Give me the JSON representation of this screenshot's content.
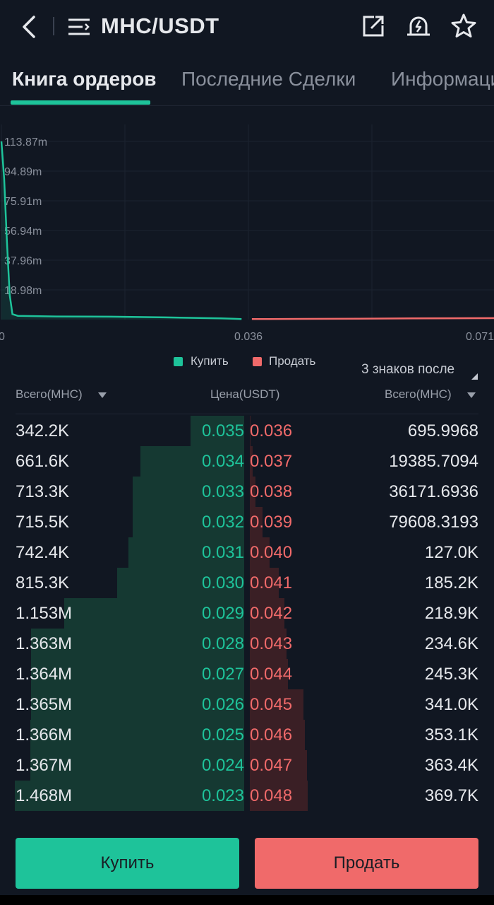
{
  "header": {
    "pair": "MHC/USDT",
    "icons": [
      "back-icon",
      "menu-icon",
      "share-icon",
      "alert-icon",
      "star-icon"
    ]
  },
  "tabs": [
    {
      "label": "Книга ордеров",
      "active": true
    },
    {
      "label": "Последние Сделки",
      "active": false
    },
    {
      "label": "Информация",
      "active": false
    }
  ],
  "chart_data": {
    "type": "area",
    "y_ticks": [
      "113.87m",
      "94.89m",
      "75.91m",
      "56.94m",
      "37.96m",
      "18.98m"
    ],
    "x_ticks": [
      "0",
      "0.036",
      "0.071"
    ],
    "ylim": [
      0,
      122000000
    ],
    "xlim": [
      0,
      0.072
    ],
    "grid": true,
    "series": [
      {
        "name": "Купить",
        "color": "#1ec39a",
        "x": [
          0,
          0.0004,
          0.0008,
          0.0012,
          0.0016,
          0.0024,
          0.008,
          0.016,
          0.024,
          0.032,
          0.034,
          0.035
        ],
        "y": [
          113870000,
          90000000,
          50000000,
          16000000,
          3500000,
          2400000,
          2000000,
          1850000,
          1400000,
          800000,
          500000,
          342200
        ]
      },
      {
        "name": "Продать",
        "color": "#f06a6a",
        "x": [
          0.0365,
          0.044,
          0.052,
          0.06,
          0.068,
          0.072
        ],
        "y": [
          300000,
          450000,
          600000,
          750000,
          900000,
          950000
        ]
      }
    ],
    "legend_position": "bottom-center"
  },
  "legend": {
    "buy": "Купить",
    "sell": "Продать",
    "buy_color": "#1ec39a",
    "sell_color": "#f06a6a"
  },
  "precision": "3 знаков после",
  "columns": {
    "bid_total": "Всего(MHC)",
    "price": "Цена(USDT)",
    "ask_total": "Всего(MHC)"
  },
  "orderbook": [
    {
      "bid_total": "342.2K",
      "bid_price": "0.035",
      "ask_price": "0.036",
      "ask_total": "695.9968",
      "bid_depth": 0.233,
      "ask_depth": 0.002
    },
    {
      "bid_total": "661.6K",
      "bid_price": "0.034",
      "ask_price": "0.037",
      "ask_total": "19385.7094",
      "bid_depth": 0.451,
      "ask_depth": 0.052
    },
    {
      "bid_total": "713.3K",
      "bid_price": "0.033",
      "ask_price": "0.038",
      "ask_total": "36171.6936",
      "bid_depth": 0.486,
      "ask_depth": 0.098
    },
    {
      "bid_total": "715.5K",
      "bid_price": "0.032",
      "ask_price": "0.039",
      "ask_total": "79608.3193",
      "bid_depth": 0.487,
      "ask_depth": 0.215
    },
    {
      "bid_total": "742.4K",
      "bid_price": "0.031",
      "ask_price": "0.040",
      "ask_total": "127.0K",
      "bid_depth": 0.506,
      "ask_depth": 0.344
    },
    {
      "bid_total": "815.3K",
      "bid_price": "0.030",
      "ask_price": "0.041",
      "ask_total": "185.2K",
      "bid_depth": 0.555,
      "ask_depth": 0.501
    },
    {
      "bid_total": "1.153M",
      "bid_price": "0.029",
      "ask_price": "0.042",
      "ask_total": "218.9K",
      "bid_depth": 0.785,
      "ask_depth": 0.592
    },
    {
      "bid_total": "1.363M",
      "bid_price": "0.028",
      "ask_price": "0.043",
      "ask_total": "234.6K",
      "bid_depth": 0.929,
      "ask_depth": 0.635
    },
    {
      "bid_total": "1.364M",
      "bid_price": "0.027",
      "ask_price": "0.044",
      "ask_total": "245.3K",
      "bid_depth": 0.929,
      "ask_depth": 0.663
    },
    {
      "bid_total": "1.365M",
      "bid_price": "0.026",
      "ask_price": "0.045",
      "ask_total": "341.0K",
      "bid_depth": 0.93,
      "ask_depth": 0.922
    },
    {
      "bid_total": "1.366M",
      "bid_price": "0.025",
      "ask_price": "0.046",
      "ask_total": "353.1K",
      "bid_depth": 0.931,
      "ask_depth": 0.955
    },
    {
      "bid_total": "1.367M",
      "bid_price": "0.024",
      "ask_price": "0.047",
      "ask_total": "363.4K",
      "bid_depth": 0.931,
      "ask_depth": 0.983
    },
    {
      "bid_total": "1.468M",
      "bid_price": "0.023",
      "ask_price": "0.048",
      "ask_total": "369.7K",
      "bid_depth": 1.0,
      "ask_depth": 1.0
    }
  ],
  "buttons": {
    "buy": "Купить",
    "sell": "Продать"
  }
}
